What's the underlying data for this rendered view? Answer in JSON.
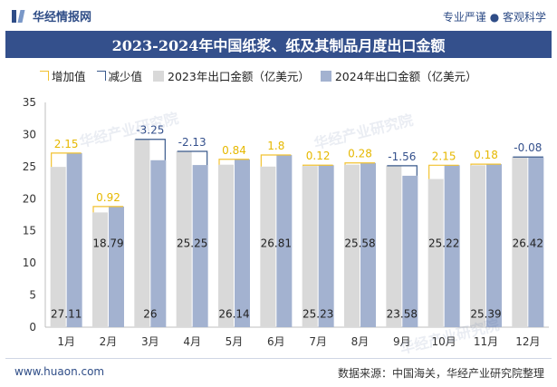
{
  "header": {
    "brand": "华经情报网",
    "slogan": "专业严谨 ● 客观科学",
    "title": "2023-2024年中国纸浆、纸及其制品月度出口金额"
  },
  "legend": {
    "increase": "增加值",
    "decrease": "减少值",
    "series2023": "2023年出口金额（亿美元）",
    "series2024": "2024年出口金额（亿美元）"
  },
  "footer": {
    "url": "www.huaon.com",
    "source": "数据来源：中国海关，华经产业研究院整理"
  },
  "watermark": "华经产业研究院",
  "colors": {
    "bar2023": "#d9d9d9",
    "bar2024": "#a3b2d0",
    "increase": "#f2c230",
    "decrease": "#3a5a8c",
    "title_bg": "#34508c"
  },
  "chart_data": {
    "type": "bar",
    "categories": [
      "1月",
      "2月",
      "3月",
      "4月",
      "5月",
      "6月",
      "7月",
      "8月",
      "9月",
      "10月",
      "11月",
      "12月"
    ],
    "series": [
      {
        "name": "2023年出口金额（亿美元）",
        "values": [
          24.96,
          17.87,
          29.25,
          27.38,
          25.3,
          25.01,
          25.11,
          25.3,
          25.14,
          23.07,
          25.21,
          26.5
        ]
      },
      {
        "name": "2024年出口金额（亿美元）",
        "values": [
          27.11,
          18.79,
          26,
          25.25,
          26.14,
          26.81,
          25.23,
          25.58,
          23.58,
          25.22,
          25.39,
          26.42
        ]
      }
    ],
    "changes": [
      2.15,
      0.92,
      -3.25,
      -2.13,
      0.84,
      1.8,
      0.12,
      0.28,
      -1.56,
      2.15,
      0.18,
      -0.08
    ],
    "change_labels": [
      "2.15",
      "0.92",
      "-3.25",
      "-2.13",
      "0.84",
      "1.8",
      "0.12",
      "0.28",
      "-1.56",
      "2.15",
      "0.18",
      "-0.08"
    ],
    "value_labels_2024": [
      "27.11",
      "18.79",
      "26",
      "25.25",
      "26.14",
      "26.81",
      "25.23",
      "25.58",
      "23.58",
      "25.22",
      "25.39",
      "26.42"
    ],
    "yticks": [
      "0",
      "5",
      "10",
      "15",
      "20",
      "25",
      "30",
      "35"
    ],
    "ylim": [
      0,
      35
    ],
    "grid": false,
    "legend_position": "top-left"
  }
}
